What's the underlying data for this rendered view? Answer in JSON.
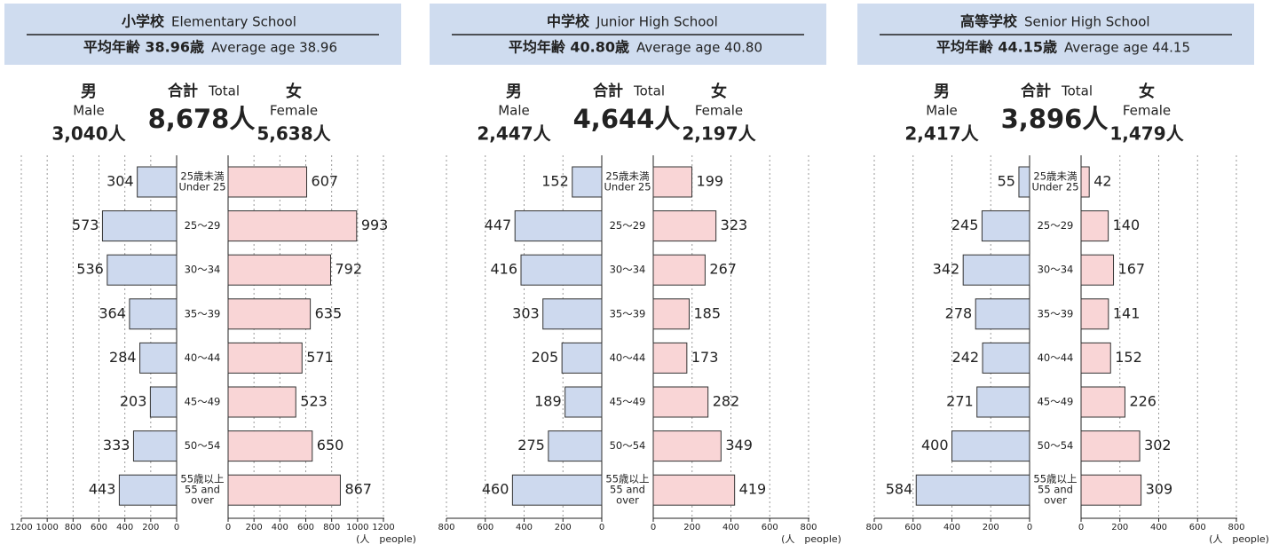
{
  "chart_data": [
    {
      "type": "pyramid",
      "title": "小学校",
      "title_en": "Elementary School",
      "subtitle": "平均年齢 38.96歳",
      "subtitle_en": "Average age 38.96",
      "total_name": "合計",
      "total_name_en": "Total",
      "total_label": "8,678人",
      "unit": "(人　people)",
      "categories": [
        [
          "25歳未満",
          "Under 25"
        ],
        [
          "25～29"
        ],
        [
          "30～34"
        ],
        [
          "35～39"
        ],
        [
          "40～44"
        ],
        [
          "45～49"
        ],
        [
          "50～54"
        ],
        [
          "55歳以上",
          "55 and",
          "over"
        ]
      ],
      "series": [
        {
          "name": "男",
          "name_en": "Male",
          "total_label": "3,040人",
          "color": "#cdd9ee",
          "values": [
            304,
            573,
            536,
            364,
            284,
            203,
            333,
            443
          ]
        },
        {
          "name": "女",
          "name_en": "Female",
          "total_label": "5,638人",
          "color": "#f9d5d6",
          "values": [
            607,
            993,
            792,
            635,
            571,
            523,
            650,
            867
          ]
        }
      ],
      "xlim": [
        0,
        1200
      ],
      "xticks": [
        0,
        200,
        400,
        600,
        800,
        1000,
        1200
      ],
      "grid": true
    },
    {
      "type": "pyramid",
      "title": "中学校",
      "title_en": "Junior High School",
      "subtitle": "平均年齢 40.80歳",
      "subtitle_en": "Average age 40.80",
      "total_name": "合計",
      "total_name_en": "Total",
      "total_label": "4,644人",
      "unit": "(人　people)",
      "categories": [
        [
          "25歳未満",
          "Under 25"
        ],
        [
          "25～29"
        ],
        [
          "30～34"
        ],
        [
          "35～39"
        ],
        [
          "40～44"
        ],
        [
          "45～49"
        ],
        [
          "50～54"
        ],
        [
          "55歳以上",
          "55 and",
          "over"
        ]
      ],
      "series": [
        {
          "name": "男",
          "name_en": "Male",
          "total_label": "2,447人",
          "color": "#cdd9ee",
          "values": [
            152,
            447,
            416,
            303,
            205,
            189,
            275,
            460
          ]
        },
        {
          "name": "女",
          "name_en": "Female",
          "total_label": "2,197人",
          "color": "#f9d5d6",
          "values": [
            199,
            323,
            267,
            185,
            173,
            282,
            349,
            419
          ]
        }
      ],
      "xlim": [
        0,
        800
      ],
      "xticks": [
        0,
        200,
        400,
        600,
        800
      ],
      "grid": true
    },
    {
      "type": "pyramid",
      "title": "高等学校",
      "title_en": "Senior High School",
      "subtitle": "平均年齢 44.15歳",
      "subtitle_en": "Average age 44.15",
      "total_name": "合計",
      "total_name_en": "Total",
      "total_label": "3,896人",
      "unit": "(人　people)",
      "categories": [
        [
          "25歳未満",
          "Under 25"
        ],
        [
          "25～29"
        ],
        [
          "30～34"
        ],
        [
          "35～39"
        ],
        [
          "40～44"
        ],
        [
          "45～49"
        ],
        [
          "50～54"
        ],
        [
          "55歳以上",
          "55 and",
          "over"
        ]
      ],
      "series": [
        {
          "name": "男",
          "name_en": "Male",
          "total_label": "2,417人",
          "color": "#cdd9ee",
          "values": [
            55,
            245,
            342,
            278,
            242,
            271,
            400,
            584
          ]
        },
        {
          "name": "女",
          "name_en": "Female",
          "total_label": "1,479人",
          "color": "#f9d5d6",
          "values": [
            42,
            140,
            167,
            141,
            152,
            226,
            302,
            309
          ]
        }
      ],
      "xlim": [
        0,
        800
      ],
      "xticks": [
        0,
        200,
        400,
        600,
        800
      ],
      "grid": true
    }
  ]
}
